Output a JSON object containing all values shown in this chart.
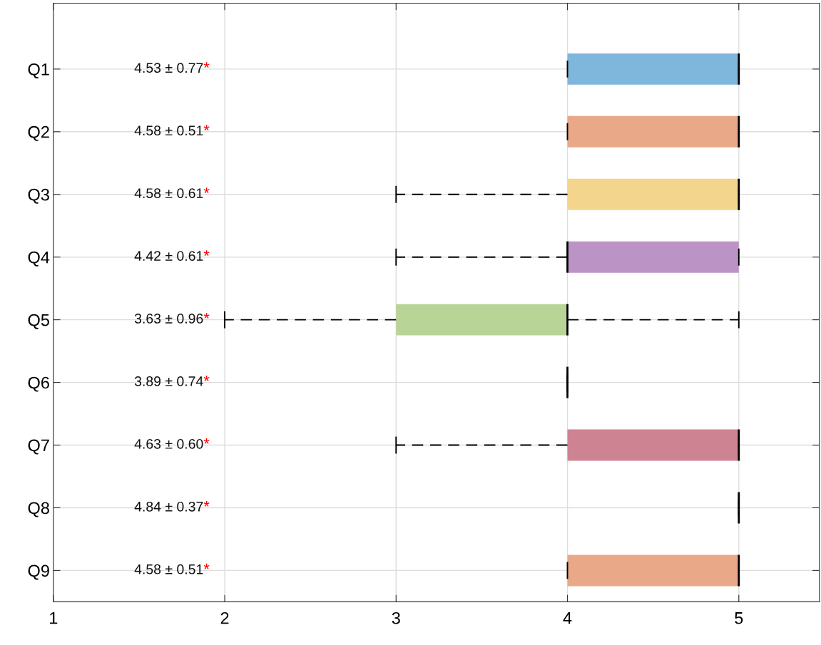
{
  "chart_data": {
    "type": "box",
    "orientation": "horizontal",
    "categories": [
      "Q1",
      "Q2",
      "Q3",
      "Q4",
      "Q5",
      "Q6",
      "Q7",
      "Q8",
      "Q9"
    ],
    "colors": [
      "#7eb6dc",
      "#e9a887",
      "#f3d58e",
      "#bb94c5",
      "#b9d497",
      null,
      "#ce8393",
      null,
      "#e9a887"
    ],
    "boxes": [
      {
        "low": 4,
        "q1": 4,
        "median": 5,
        "q3": 5,
        "high": 5
      },
      {
        "low": 4,
        "q1": 4,
        "median": 5,
        "q3": 5,
        "high": 5
      },
      {
        "low": 3,
        "q1": 4,
        "median": 5,
        "q3": 5,
        "high": 5
      },
      {
        "low": 3,
        "q1": 4,
        "median": 4,
        "q3": 5,
        "high": 5
      },
      {
        "low": 2,
        "q1": 3,
        "median": 4,
        "q3": 4,
        "high": 5
      },
      {
        "low": 4,
        "q1": 4,
        "median": 4,
        "q3": 4,
        "high": 4
      },
      {
        "low": 3,
        "q1": 4,
        "median": 5,
        "q3": 5,
        "high": 5
      },
      {
        "low": 5,
        "q1": 5,
        "median": 5,
        "q3": 5,
        "high": 5
      },
      {
        "low": 4,
        "q1": 4,
        "median": 5,
        "q3": 5,
        "high": 5
      }
    ],
    "annotations": [
      "4.53 ± 0.77*",
      "4.58 ± 0.51*",
      "4.58 ± 0.61*",
      "4.42 ± 0.61*",
      "3.63 ± 0.96*",
      "3.89 ± 0.74*",
      "4.63 ± 0.60*",
      "4.84 ± 0.37*",
      "4.58 ± 0.51*"
    ],
    "xlim": [
      1,
      5.47
    ],
    "xticks": [
      1,
      2,
      3,
      4,
      5
    ],
    "grid": true
  }
}
